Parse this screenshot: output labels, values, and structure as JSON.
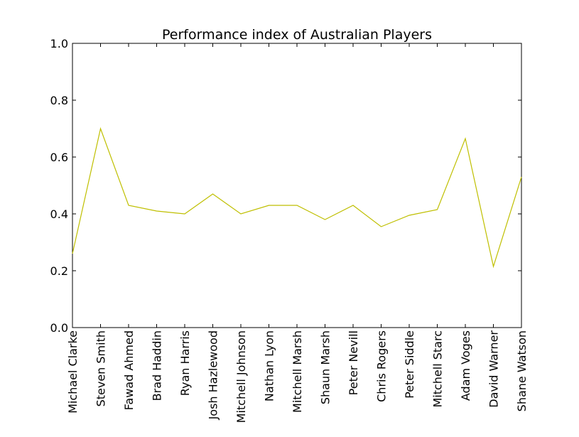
{
  "chart_data": {
    "type": "line",
    "title": "Performance index of Australian Players",
    "xlabel": "",
    "ylabel": "",
    "ylim": [
      0,
      1
    ],
    "yticks": [
      "0.0",
      "0.2",
      "0.4",
      "0.6",
      "0.8",
      "1.0"
    ],
    "grid": false,
    "line_color": "#bfbf00",
    "categories": [
      "Michael Clarke",
      "Steven Smith",
      "Fawad Ahmed",
      "Brad Haddin",
      "Ryan Harris",
      "Josh Hazlewood",
      "Mitchell Johnson",
      "Nathan Lyon",
      "Mitchell Marsh",
      "Shaun Marsh",
      "Peter Nevill",
      "Chris Rogers",
      "Peter Siddle",
      "Mitchell Starc",
      "Adam Voges",
      "David Warner",
      "Shane Watson"
    ],
    "values": [
      0.26,
      0.7,
      0.43,
      0.41,
      0.4,
      0.47,
      0.4,
      0.43,
      0.43,
      0.38,
      0.43,
      0.355,
      0.395,
      0.415,
      0.665,
      0.215,
      0.53
    ]
  }
}
